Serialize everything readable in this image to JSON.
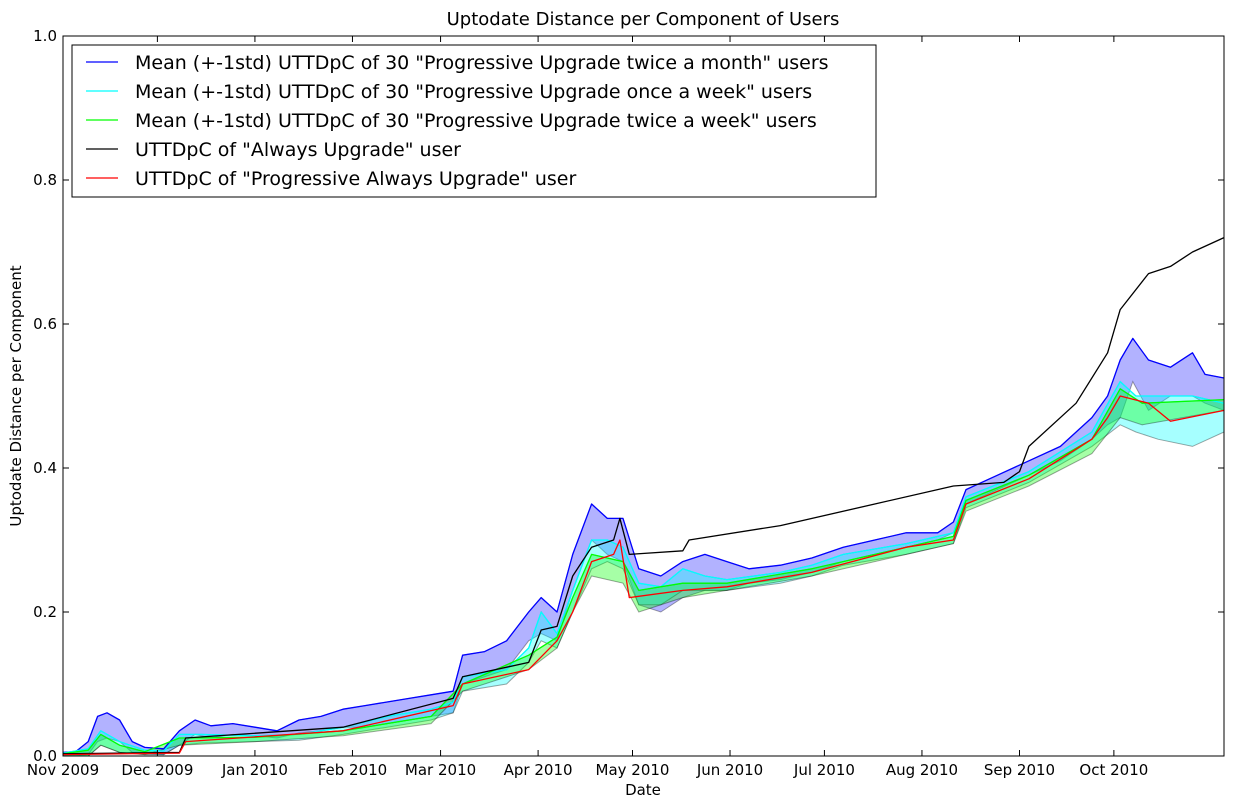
{
  "chart_data": {
    "type": "line",
    "title": "Uptodate Distance per Component of Users",
    "xlabel": "Date",
    "ylabel": "Uptodate Distance per Component",
    "xlim": [
      "2009-10-27",
      "2010-10-31"
    ],
    "ylim": [
      0,
      1.0
    ],
    "grid": false,
    "legend_position": "top-left",
    "x_ticks": [
      {
        "date": "2009-10-27",
        "label": "Nov 2009"
      },
      {
        "date": "2009-11-26",
        "label": "Dec 2009"
      },
      {
        "date": "2009-12-27",
        "label": "Jan 2010"
      },
      {
        "date": "2010-01-27",
        "label": "Feb 2010"
      },
      {
        "date": "2010-02-24",
        "label": "Mar 2010"
      },
      {
        "date": "2010-03-27",
        "label": "Apr 2010"
      },
      {
        "date": "2010-04-26",
        "label": "May 2010"
      },
      {
        "date": "2010-05-27",
        "label": "Jun 2010"
      },
      {
        "date": "2010-06-26",
        "label": "Jul 2010"
      },
      {
        "date": "2010-07-27",
        "label": "Aug 2010"
      },
      {
        "date": "2010-08-27",
        "label": "Sep 2010"
      },
      {
        "date": "2010-09-26",
        "label": "Oct 2010"
      }
    ],
    "y_ticks": [
      {
        "value": 0.0,
        "label": "0.0"
      },
      {
        "value": 0.2,
        "label": "0.2"
      },
      {
        "value": 0.4,
        "label": "0.4"
      },
      {
        "value": 0.6,
        "label": "0.6"
      },
      {
        "value": 0.8,
        "label": "0.8"
      },
      {
        "value": 1.0,
        "label": "1.0"
      }
    ],
    "series": [
      {
        "name": "Mean (+-1std) UTTDpC of 30 \"Progressive Upgrade twice a month\" users",
        "color": "#0000ff",
        "band_color": "#0000ff",
        "band_opacity": 0.3,
        "points": [
          [
            "2009-10-27",
            0.005,
            0.0,
            0.012
          ],
          [
            "2009-10-31",
            0.006,
            0.0,
            0.013
          ],
          [
            "2009-11-04",
            0.02,
            0.002,
            0.04
          ],
          [
            "2009-11-07",
            0.055,
            0.02,
            0.09
          ],
          [
            "2009-11-10",
            0.06,
            0.025,
            0.095
          ],
          [
            "2009-11-14",
            0.05,
            0.02,
            0.09
          ],
          [
            "2009-11-18",
            0.02,
            0.005,
            0.045
          ],
          [
            "2009-11-22",
            0.012,
            0.003,
            0.025
          ],
          [
            "2009-11-28",
            0.01,
            0.002,
            0.02
          ],
          [
            "2009-12-03",
            0.035,
            0.015,
            0.055
          ],
          [
            "2009-12-08",
            0.05,
            0.03,
            0.065
          ],
          [
            "2009-12-13",
            0.042,
            0.025,
            0.058
          ],
          [
            "2009-12-20",
            0.045,
            0.03,
            0.06
          ],
          [
            "2009-12-27",
            0.04,
            0.028,
            0.055
          ],
          [
            "2010-01-03",
            0.035,
            0.025,
            0.05
          ],
          [
            "2010-01-10",
            0.05,
            0.032,
            0.068
          ],
          [
            "2010-01-17",
            0.055,
            0.035,
            0.075
          ],
          [
            "2010-01-24",
            0.065,
            0.04,
            0.09
          ],
          [
            "2010-01-31",
            0.07,
            0.04,
            0.1
          ],
          [
            "2010-02-07",
            0.075,
            0.045,
            0.105
          ],
          [
            "2010-02-14",
            0.08,
            0.05,
            0.11
          ],
          [
            "2010-02-21",
            0.085,
            0.055,
            0.115
          ],
          [
            "2010-02-28",
            0.09,
            0.06,
            0.12
          ],
          [
            "2010-03-03",
            0.14,
            0.1,
            0.175
          ],
          [
            "2010-03-10",
            0.145,
            0.11,
            0.175
          ],
          [
            "2010-03-17",
            0.16,
            0.12,
            0.2
          ],
          [
            "2010-03-24",
            0.2,
            0.16,
            0.24
          ],
          [
            "2010-03-28",
            0.22,
            0.17,
            0.25
          ],
          [
            "2010-04-02",
            0.2,
            0.16,
            0.23
          ],
          [
            "2010-04-07",
            0.28,
            0.23,
            0.32
          ],
          [
            "2010-04-13",
            0.35,
            0.3,
            0.41
          ],
          [
            "2010-04-18",
            0.33,
            0.28,
            0.39
          ],
          [
            "2010-04-23",
            0.33,
            0.27,
            0.39
          ],
          [
            "2010-04-28",
            0.26,
            0.21,
            0.3
          ],
          [
            "2010-05-05",
            0.25,
            0.2,
            0.29
          ],
          [
            "2010-05-12",
            0.27,
            0.22,
            0.31
          ],
          [
            "2010-05-19",
            0.28,
            0.23,
            0.32
          ],
          [
            "2010-05-26",
            0.27,
            0.23,
            0.31
          ],
          [
            "2010-06-02",
            0.26,
            0.24,
            0.28
          ],
          [
            "2010-06-12",
            0.265,
            0.245,
            0.285
          ],
          [
            "2010-06-22",
            0.275,
            0.255,
            0.295
          ],
          [
            "2010-07-02",
            0.29,
            0.27,
            0.31
          ],
          [
            "2010-07-12",
            0.3,
            0.28,
            0.32
          ],
          [
            "2010-07-22",
            0.31,
            0.29,
            0.33
          ],
          [
            "2010-08-01",
            0.31,
            0.3,
            0.325
          ],
          [
            "2010-08-06",
            0.325,
            0.31,
            0.34
          ],
          [
            "2010-08-10",
            0.37,
            0.35,
            0.39
          ],
          [
            "2010-08-20",
            0.39,
            0.37,
            0.41
          ],
          [
            "2010-08-30",
            0.41,
            0.39,
            0.43
          ],
          [
            "2010-09-09",
            0.43,
            0.41,
            0.45
          ],
          [
            "2010-09-19",
            0.47,
            0.44,
            0.5
          ],
          [
            "2010-09-24",
            0.5,
            0.46,
            0.54
          ],
          [
            "2010-09-28",
            0.55,
            0.47,
            0.65
          ],
          [
            "2010-10-02",
            0.58,
            0.52,
            0.66
          ],
          [
            "2010-10-07",
            0.55,
            0.48,
            0.62
          ],
          [
            "2010-10-14",
            0.54,
            0.5,
            0.6
          ],
          [
            "2010-10-21",
            0.56,
            0.5,
            0.62
          ],
          [
            "2010-10-25",
            0.53,
            0.49,
            0.57
          ],
          [
            "2010-10-31",
            0.525,
            0.48,
            0.57
          ]
        ]
      },
      {
        "name": "Mean (+-1std) UTTDpC of 30 \"Progressive Upgrade once a week\" users",
        "color": "#00ffff",
        "band_color": "#00ffff",
        "band_opacity": 0.35,
        "points": [
          [
            "2009-10-27",
            0.004,
            0.0,
            0.01
          ],
          [
            "2009-11-04",
            0.01,
            0.0,
            0.02
          ],
          [
            "2009-11-08",
            0.035,
            0.015,
            0.055
          ],
          [
            "2009-11-14",
            0.02,
            0.005,
            0.035
          ],
          [
            "2009-11-22",
            0.008,
            0.002,
            0.015
          ],
          [
            "2009-11-28",
            0.007,
            0.002,
            0.013
          ],
          [
            "2009-12-03",
            0.03,
            0.015,
            0.045
          ],
          [
            "2009-12-10",
            0.03,
            0.018,
            0.04
          ],
          [
            "2009-12-27",
            0.028,
            0.02,
            0.038
          ],
          [
            "2010-01-10",
            0.03,
            0.022,
            0.04
          ],
          [
            "2010-01-24",
            0.04,
            0.03,
            0.06
          ],
          [
            "2010-02-07",
            0.055,
            0.04,
            0.08
          ],
          [
            "2010-02-21",
            0.065,
            0.05,
            0.09
          ],
          [
            "2010-02-28",
            0.075,
            0.06,
            0.1
          ],
          [
            "2010-03-03",
            0.11,
            0.09,
            0.13
          ],
          [
            "2010-03-17",
            0.12,
            0.1,
            0.14
          ],
          [
            "2010-03-24",
            0.15,
            0.13,
            0.17
          ],
          [
            "2010-03-28",
            0.2,
            0.16,
            0.24
          ],
          [
            "2010-04-02",
            0.17,
            0.15,
            0.19
          ],
          [
            "2010-04-07",
            0.23,
            0.2,
            0.26
          ],
          [
            "2010-04-13",
            0.3,
            0.26,
            0.33
          ],
          [
            "2010-04-18",
            0.3,
            0.27,
            0.33
          ],
          [
            "2010-04-23",
            0.29,
            0.26,
            0.32
          ],
          [
            "2010-04-28",
            0.24,
            0.21,
            0.27
          ],
          [
            "2010-05-05",
            0.235,
            0.21,
            0.26
          ],
          [
            "2010-05-12",
            0.26,
            0.23,
            0.29
          ],
          [
            "2010-05-19",
            0.25,
            0.23,
            0.27
          ],
          [
            "2010-05-26",
            0.245,
            0.23,
            0.26
          ],
          [
            "2010-06-12",
            0.255,
            0.24,
            0.27
          ],
          [
            "2010-06-22",
            0.265,
            0.25,
            0.28
          ],
          [
            "2010-07-02",
            0.28,
            0.265,
            0.295
          ],
          [
            "2010-07-22",
            0.295,
            0.28,
            0.31
          ],
          [
            "2010-08-06",
            0.31,
            0.295,
            0.325
          ],
          [
            "2010-08-10",
            0.36,
            0.345,
            0.375
          ],
          [
            "2010-08-30",
            0.395,
            0.38,
            0.41
          ],
          [
            "2010-09-19",
            0.45,
            0.43,
            0.47
          ],
          [
            "2010-09-28",
            0.52,
            0.46,
            0.58
          ],
          [
            "2010-10-03",
            0.5,
            0.45,
            0.55
          ],
          [
            "2010-10-10",
            0.5,
            0.44,
            0.56
          ],
          [
            "2010-10-21",
            0.5,
            0.43,
            0.6
          ],
          [
            "2010-10-31",
            0.49,
            0.45,
            0.51
          ]
        ]
      },
      {
        "name": "Mean (+-1std) UTTDpC of 30 \"Progressive Upgrade twice a week\" users",
        "color": "#00ff00",
        "band_color": "#00ff00",
        "band_opacity": 0.35,
        "points": [
          [
            "2009-10-27",
            0.003,
            0.0,
            0.008
          ],
          [
            "2009-11-04",
            0.008,
            0.0,
            0.015
          ],
          [
            "2009-11-08",
            0.03,
            0.015,
            0.045
          ],
          [
            "2009-11-14",
            0.015,
            0.005,
            0.028
          ],
          [
            "2009-11-22",
            0.006,
            0.002,
            0.012
          ],
          [
            "2009-12-03",
            0.025,
            0.015,
            0.035
          ],
          [
            "2009-12-27",
            0.026,
            0.02,
            0.034
          ],
          [
            "2010-01-24",
            0.035,
            0.028,
            0.045
          ],
          [
            "2010-02-21",
            0.055,
            0.045,
            0.07
          ],
          [
            "2010-03-03",
            0.1,
            0.09,
            0.12
          ],
          [
            "2010-03-24",
            0.14,
            0.12,
            0.16
          ],
          [
            "2010-04-02",
            0.165,
            0.15,
            0.18
          ],
          [
            "2010-04-07",
            0.22,
            0.2,
            0.25
          ],
          [
            "2010-04-13",
            0.28,
            0.25,
            0.31
          ],
          [
            "2010-04-23",
            0.27,
            0.24,
            0.3
          ],
          [
            "2010-04-28",
            0.23,
            0.2,
            0.26
          ],
          [
            "2010-05-12",
            0.24,
            0.22,
            0.26
          ],
          [
            "2010-05-26",
            0.24,
            0.23,
            0.25
          ],
          [
            "2010-06-22",
            0.26,
            0.25,
            0.27
          ],
          [
            "2010-07-22",
            0.29,
            0.28,
            0.3
          ],
          [
            "2010-08-06",
            0.305,
            0.295,
            0.315
          ],
          [
            "2010-08-10",
            0.355,
            0.34,
            0.37
          ],
          [
            "2010-08-30",
            0.39,
            0.375,
            0.4
          ],
          [
            "2010-09-19",
            0.44,
            0.42,
            0.46
          ],
          [
            "2010-09-28",
            0.51,
            0.47,
            0.55
          ],
          [
            "2010-10-05",
            0.49,
            0.46,
            0.52
          ],
          [
            "2010-10-31",
            0.495,
            0.48,
            0.51
          ]
        ]
      },
      {
        "name": "UTTDpC of \"Always Upgrade\" user",
        "color": "#000000",
        "points": [
          [
            "2009-10-27",
            0.003
          ],
          [
            "2009-12-03",
            0.005
          ],
          [
            "2009-12-05",
            0.025
          ],
          [
            "2010-01-24",
            0.04
          ],
          [
            "2010-02-28",
            0.08
          ],
          [
            "2010-03-03",
            0.11
          ],
          [
            "2010-03-24",
            0.13
          ],
          [
            "2010-03-28",
            0.175
          ],
          [
            "2010-04-02",
            0.18
          ],
          [
            "2010-04-07",
            0.25
          ],
          [
            "2010-04-13",
            0.29
          ],
          [
            "2010-04-20",
            0.3
          ],
          [
            "2010-04-22",
            0.33
          ],
          [
            "2010-04-25",
            0.28
          ],
          [
            "2010-05-12",
            0.285
          ],
          [
            "2010-05-14",
            0.3
          ],
          [
            "2010-06-12",
            0.32
          ],
          [
            "2010-07-12",
            0.35
          ],
          [
            "2010-08-06",
            0.375
          ],
          [
            "2010-08-22",
            0.38
          ],
          [
            "2010-08-27",
            0.395
          ],
          [
            "2010-08-30",
            0.43
          ],
          [
            "2010-09-14",
            0.49
          ],
          [
            "2010-09-24",
            0.56
          ],
          [
            "2010-09-28",
            0.62
          ],
          [
            "2010-10-07",
            0.67
          ],
          [
            "2010-10-14",
            0.68
          ],
          [
            "2010-10-21",
            0.7
          ],
          [
            "2010-10-31",
            0.72
          ]
        ]
      },
      {
        "name": "UTTDpC of \"Progressive Always Upgrade\" user",
        "color": "#ff0000",
        "points": [
          [
            "2009-10-27",
            0.002
          ],
          [
            "2009-12-03",
            0.004
          ],
          [
            "2009-12-05",
            0.02
          ],
          [
            "2010-01-24",
            0.035
          ],
          [
            "2010-02-28",
            0.07
          ],
          [
            "2010-03-03",
            0.1
          ],
          [
            "2010-03-24",
            0.12
          ],
          [
            "2010-04-02",
            0.16
          ],
          [
            "2010-04-07",
            0.2
          ],
          [
            "2010-04-13",
            0.27
          ],
          [
            "2010-04-20",
            0.28
          ],
          [
            "2010-04-22",
            0.3
          ],
          [
            "2010-04-25",
            0.22
          ],
          [
            "2010-05-12",
            0.23
          ],
          [
            "2010-05-26",
            0.235
          ],
          [
            "2010-06-22",
            0.255
          ],
          [
            "2010-07-22",
            0.29
          ],
          [
            "2010-08-06",
            0.3
          ],
          [
            "2010-08-10",
            0.35
          ],
          [
            "2010-08-30",
            0.385
          ],
          [
            "2010-09-19",
            0.44
          ],
          [
            "2010-09-24",
            0.47
          ],
          [
            "2010-09-28",
            0.5
          ],
          [
            "2010-10-07",
            0.49
          ],
          [
            "2010-10-14",
            0.465
          ],
          [
            "2010-10-31",
            0.48
          ]
        ]
      }
    ]
  }
}
